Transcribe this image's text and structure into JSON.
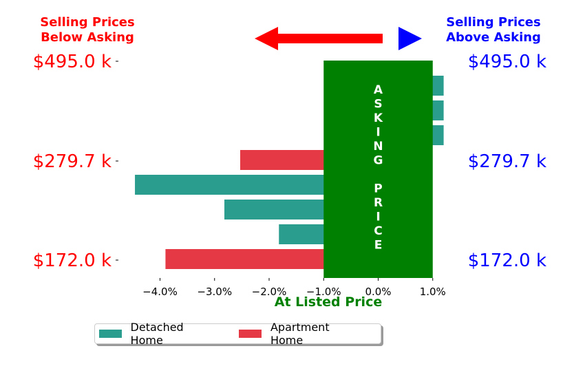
{
  "header": {
    "left_line1": "Selling Prices",
    "left_line2": "Below Asking",
    "right_line1": "Selling Prices",
    "right_line2": "Above Asking"
  },
  "center_label": "At Listed Price",
  "asking_price_letters": [
    "A",
    "S",
    "K",
    "I",
    "N",
    "G",
    "",
    "P",
    "R",
    "I",
    "C",
    "E"
  ],
  "colors": {
    "detached": "#2a9d8f",
    "apartment": "#e63946",
    "asking_box": "#008000",
    "below_text": "#ff0000",
    "above_text": "#0000ff",
    "left_arrow": "#ff0000",
    "right_arrow": "#0000ff"
  },
  "legend": {
    "detached_label": "Detached Home",
    "apartment_label": "Apartment Home"
  },
  "chart_data": {
    "type": "bar",
    "orientation": "horizontal",
    "xlim": [
      -4.5,
      1.0
    ],
    "xticks": [
      -4.0,
      -3.0,
      -2.0,
      -1.0,
      0.0,
      1.0
    ],
    "xtick_labels": [
      "−4.0%",
      "−3.0%",
      "−2.0%",
      "−1.0%",
      "0.0%",
      "1.0%"
    ],
    "left_tick_labels": [
      "$495.0 k",
      "$279.7 k",
      "$172.0 k"
    ],
    "right_tick_labels": [
      "$495.0 k",
      "$279.7 k",
      "$172.0 k"
    ],
    "bars": [
      {
        "category": "Detached Home",
        "value": 1.2
      },
      {
        "category": "Detached Home",
        "value": 1.2
      },
      {
        "category": "Detached Home",
        "value": 1.2
      },
      {
        "category": "Apartment Home",
        "value": -2.53
      },
      {
        "category": "Detached Home",
        "value": -4.46
      },
      {
        "category": "Detached Home",
        "value": -2.82
      },
      {
        "category": "Detached Home",
        "value": -1.82
      },
      {
        "category": "Apartment Home",
        "value": -3.9
      }
    ],
    "asking_band": [
      -1.0,
      1.0
    ],
    "grid": false
  }
}
